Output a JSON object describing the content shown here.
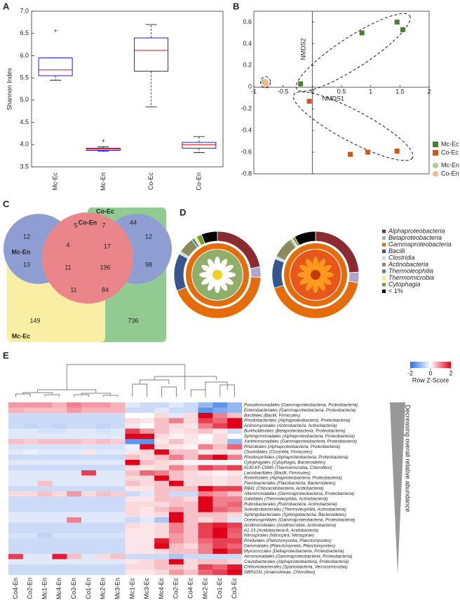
{
  "chart_data": [
    {
      "type": "box",
      "panel": "A",
      "ylabel": "Shannon Index",
      "categories": [
        "Mc-Ec",
        "Mc-En",
        "Co-Ec",
        "Co-En"
      ],
      "min": [
        5.45,
        3.85,
        4.85,
        3.82
      ],
      "q1": [
        5.55,
        3.87,
        5.65,
        3.92
      ],
      "median": [
        5.68,
        3.9,
        6.12,
        4.0
      ],
      "q3": [
        5.95,
        3.92,
        6.4,
        4.05
      ],
      "max": [
        5.95,
        3.95,
        6.7,
        4.18
      ],
      "outliers": [
        [
          6.55
        ],
        [
          4.07
        ],
        [],
        []
      ],
      "color": "#0000ff",
      "median_color": "#ff0000",
      "ylim": [
        3.5,
        7
      ],
      "yticks": [
        3.5,
        {
          "value": 4,
          "label": "4.0"
        },
        4.5,
        {
          "value": 5,
          "label": "5.0"
        },
        5.5,
        {
          "value": 6,
          "label": "6.0"
        },
        6.5,
        {
          "value": 7,
          "label": "7.0"
        }
      ]
    },
    {
      "type": "scatter",
      "panel": "B",
      "xlabel": "NMDS1",
      "ylabel": "NMDS2",
      "xlim": [
        -1,
        2
      ],
      "xticks": [
        -1,
        -0.5,
        0,
        0.5,
        1,
        1.5,
        2
      ],
      "ylim": [
        -0.8,
        0.7
      ],
      "yticks": [
        -0.8,
        -0.6,
        -0.4,
        -0.2,
        0,
        0.2,
        0.4,
        0.6
      ],
      "series": [
        {
          "name": "Mc-Ec",
          "color": "#4a7f32",
          "marker": "square",
          "x": [
            -0.2,
            0.85,
            1.45,
            1.55
          ],
          "values": [
            0.03,
            0.5,
            0.6,
            0.53
          ]
        },
        {
          "name": "Co-Ec",
          "color": "#d4561a",
          "marker": "square",
          "x": [
            -0.05,
            0.65,
            0.95,
            1.45
          ],
          "values": [
            -0.13,
            -0.62,
            -0.6,
            -0.59
          ]
        },
        {
          "name": "Mc-En",
          "color": "#a6d08c",
          "marker": "circle",
          "x": [
            -0.83,
            -0.81
          ],
          "values": [
            0.05,
            0.04
          ]
        },
        {
          "name": "Co-En",
          "color": "#f4b694",
          "marker": "circle",
          "x": [
            -0.8,
            -0.79
          ],
          "values": [
            0.05,
            0.03
          ]
        }
      ]
    },
    {
      "type": "venn",
      "panel": "C",
      "sets": [
        {
          "name": "Co-En",
          "color": "#d9252a"
        },
        {
          "name": "Co-Ec",
          "color": "#3aa13a"
        },
        {
          "name": "Mc-En",
          "color": "#3350b0"
        },
        {
          "name": "Mc-Ec",
          "color": "#e0b000"
        }
      ],
      "counts": [
        44,
        12,
        5,
        7,
        12,
        4,
        17,
        13,
        11,
        196,
        98,
        11,
        84,
        149,
        736
      ]
    },
    {
      "type": "donut",
      "panel": "D",
      "categories": [
        "Alphaproteobacteria",
        "Betaproteobacteria",
        "Gammaproteobacteria",
        "Bacilli",
        "Clostridia",
        "Actinobacteria",
        "Thermoleophilia",
        "Thermomicrobia",
        "Cytophagia",
        "< 1%"
      ],
      "colors": [
        "#8b2a2f",
        "#b3a5c9",
        "#e46c0a",
        "#35568f",
        "#c5d9e9",
        "#8c8a5a",
        "#4a7fa8",
        "#f2f25a",
        "#7a9a3a",
        "#000000"
      ],
      "rings": [
        [
          22,
          4,
          43,
          14,
          1,
          6,
          1,
          1,
          2,
          6
        ],
        [
          24,
          4,
          42,
          11,
          1,
          8,
          0.5,
          0.5,
          1,
          8
        ]
      ]
    },
    {
      "type": "heatmap",
      "panel": "E",
      "colorbar_label": "Row Z-Score",
      "clim": [
        -2,
        2
      ],
      "cticks": [
        -2,
        0,
        2
      ],
      "side_label": "Decreasing overall relative abundance",
      "columns": [
        "Co4-En",
        "Co2-En",
        "Mc1-En",
        "Mc4-En",
        "Co3-En",
        "Co1-En",
        "Mc2-En",
        "Mc3-En",
        "Mc1-Ec",
        "Mc3-Ec",
        "Mc4-Ec",
        "Co2-Ec",
        "Co4-Ec",
        "Mc2-Ec",
        "Co1-Ec",
        "Co3-Ec"
      ],
      "rows": [
        "Pseudomonadales (Gammaproteobacteria, Proteobacteria)",
        "Enterobacteriales (Gammaproteobacteria, Proteobacteria)",
        "Bacillales (Bacilli, Firmicutes)",
        "Rhodobacterales (Alphaproteobacteria, Proteobacteria)",
        "Actinomycetales (Actinobacteria, Actinobacteria)",
        "Burkholderiales (Betaproteobacteria, Proteobacteria)",
        "Sphingomonadales (Alphaproteobacteria, Proteobacteria)",
        "Xanthomonadales (Gammaproteobacteria, Proteobacteria)",
        "Rhizobiales (Alphaproteobacteria, Proteobacteria)",
        "Clostridiales (Clostridia, Firmicutes)",
        "Rhodospirillales (Alphaproteobacteria, Proteobacteria)",
        "Cytophagales (Cytophagia, Bacteroidetes)",
        "IG30-KF-CM45 (Thermomicrobia, Chloroflexi)",
        "Lactobacillales (Bacilli, Firmicutes)",
        "Rickettsiales (Alphaproteobacteria, Proteobacteria)",
        "Flavobacteriales (Flavobacteriia, Bacteroidetes)",
        "RB41 (Chloracidobacteria, Acidobacteria)",
        "Alteromonadales (Gammaproteobacteria, Proteobacteria)",
        "Gaiellales (Thermoleophilia, Actinobacteria)",
        "Rubrobacterales (Rubrobacteria, Actinobacteria)",
        "Solirubrobacterales (Thermoleophilia, Actinobacteria)",
        "Sphingobacteriales (Sphingobacteriia, Bacteroidetes)",
        "Oceanospirillales (Gammaproteobacteria, Proteobacteria)",
        "Acidimicrobiales (Acidimicrobiia, Actinobacteria)",
        "iii1-15 (Acidobacteria-6, Acidobacteria)",
        "Nitrospirales (Nitrospira, Nitrospirae)",
        "Pirellulales (Planctomycetia, Planctomycetes)",
        "Gemmatales (Planctomycetia, Planctomycetes)",
        "Myxococcales (Deltaproteobacteria, Proteobacteria)",
        "Aeromonadales (Gammaproteobacteria, Proteobacteria)",
        "Caulobacterales (Alphaproteobacteria, Proteobacteria)",
        "Chthoniobacterales (Spartobacteria, Verrucomicrobia)",
        "SBR1031 (Anaerolineae, Chloroflexi)"
      ],
      "values": [
        [
          0.8,
          0.8,
          0.8,
          0.6,
          1,
          0.8,
          0.8,
          0.6,
          -0.3,
          -0.5,
          -0.5,
          -0.3,
          -0.5,
          -1,
          -1.5,
          -1
        ],
        [
          0.6,
          0.5,
          0.5,
          0.5,
          0.8,
          0.6,
          0.6,
          0.6,
          -0.5,
          -0.5,
          -0.3,
          -0.5,
          -0.5,
          -1.5,
          -1.2,
          -1
        ],
        [
          -0.5,
          -0.5,
          -0.5,
          -0.5,
          -0.5,
          -0.5,
          -0.5,
          -0.5,
          0,
          0,
          0.3,
          -0.3,
          0.3,
          2.5,
          1,
          0.5
        ],
        [
          -0.5,
          -0.5,
          -0.5,
          -0.5,
          -0.5,
          -0.5,
          -0.5,
          -0.5,
          0.3,
          0.2,
          0.5,
          1,
          0.3,
          1.5,
          1.2,
          2
        ],
        [
          -0.5,
          -0.6,
          -0.5,
          -0.6,
          -0.5,
          -0.5,
          -0.6,
          -0.5,
          0.2,
          0,
          0.5,
          0.3,
          0.2,
          1,
          1.5,
          2.2
        ],
        [
          -0.3,
          -0.3,
          -0.4,
          -0.4,
          -0.3,
          -0.3,
          -0.4,
          -0.3,
          1.5,
          0.8,
          0.5,
          0.2,
          0.3,
          0.5,
          0.2,
          -0.5
        ],
        [
          -0.3,
          -0.3,
          -0.3,
          -0.3,
          -0.3,
          -0.3,
          -0.3,
          -0.3,
          2,
          2.2,
          0.3,
          0.1,
          0.2,
          0,
          0.3,
          0
        ],
        [
          0.5,
          0.4,
          0.5,
          0.5,
          0.5,
          0.4,
          0.5,
          0.4,
          -1.5,
          -1.5,
          0.2,
          0.5,
          0.2,
          0.1,
          0.3,
          -1
        ],
        [
          -0.4,
          -0.4,
          -0.4,
          -0.4,
          -0.4,
          -0.4,
          -0.4,
          -0.4,
          -0.2,
          2.5,
          0.3,
          0.2,
          0.1,
          1,
          0.5,
          1.2
        ],
        [
          -0.3,
          -0.2,
          -0.3,
          -0.3,
          -0.3,
          0.2,
          -0.3,
          -0.3,
          0.2,
          0.3,
          2.5,
          0.5,
          0.5,
          0.2,
          0.3,
          0.2
        ],
        [
          -0.5,
          -0.5,
          -0.5,
          -0.5,
          -0.5,
          -0.5,
          -0.5,
          -0.5,
          0.5,
          0.3,
          0.5,
          1,
          0.5,
          1.5,
          2,
          1
        ],
        [
          -0.3,
          -0.3,
          -0.3,
          -0.3,
          -0.3,
          -0.3,
          -0.3,
          -0.3,
          2.5,
          0.5,
          0.3,
          0.2,
          0.1,
          0.1,
          0.1,
          0
        ],
        [
          -0.5,
          -0.5,
          -0.5,
          -0.5,
          -0.5,
          -0.5,
          -0.5,
          -0.5,
          0.3,
          0.2,
          0.3,
          1,
          0.5,
          1.5,
          1.2,
          1.5
        ],
        [
          -0.3,
          -0.3,
          -0.3,
          -0.3,
          -0.3,
          1.5,
          -0.3,
          -0.3,
          0.5,
          1.2,
          1,
          0.5,
          0.3,
          0.2,
          0.1,
          0.2
        ],
        [
          -0.3,
          -0.3,
          -0.3,
          -0.3,
          -0.3,
          -0.3,
          -0.3,
          -0.3,
          0.3,
          0.3,
          2.5,
          0.5,
          0.3,
          0.3,
          0.2,
          0.3
        ],
        [
          -0.3,
          -0.3,
          0.5,
          -0.3,
          -0.3,
          -0.3,
          -0.3,
          -0.3,
          0.5,
          0.3,
          0.5,
          2.8,
          0.3,
          0.3,
          0.2,
          0.3
        ],
        [
          -0.5,
          -0.5,
          -0.5,
          -0.5,
          -0.5,
          -0.5,
          -0.5,
          -0.5,
          0.2,
          0.2,
          0.5,
          0.5,
          0.5,
          2,
          1.5,
          1.5
        ],
        [
          0.3,
          0.3,
          0.5,
          0.3,
          0.8,
          0.3,
          0.5,
          0.4,
          -0.5,
          -0.3,
          0.5,
          -0.5,
          -0.5,
          1,
          0.8,
          0.5
        ],
        [
          -0.5,
          -0.5,
          -0.5,
          -0.5,
          -0.5,
          -0.5,
          -0.5,
          -0.5,
          0.2,
          0.2,
          0.5,
          0.5,
          0.3,
          2.5,
          1,
          1
        ],
        [
          -0.5,
          -0.5,
          -0.5,
          -0.5,
          -0.5,
          -0.5,
          -0.5,
          -0.5,
          0.3,
          0.3,
          0.3,
          0.5,
          0.5,
          2.5,
          1,
          1.2
        ],
        [
          -0.5,
          -0.5,
          -0.5,
          -0.5,
          -0.5,
          -0.5,
          -0.5,
          -0.5,
          0.3,
          0.2,
          0.5,
          0.8,
          0.5,
          2.2,
          1.2,
          1
        ],
        [
          -0.3,
          -0.3,
          -0.3,
          -0.3,
          -0.3,
          -0.3,
          -0.3,
          -0.3,
          0.3,
          0.2,
          0.3,
          2.5,
          0.5,
          0.5,
          0.5,
          0.3
        ],
        [
          -0.3,
          -0.3,
          -0.3,
          -0.3,
          1,
          -0.3,
          -0.3,
          -0.3,
          -0.5,
          -0.3,
          -0.8,
          2,
          0.5,
          0.3,
          0.5,
          -0.3
        ],
        [
          -0.5,
          -0.5,
          -0.5,
          -0.5,
          -0.5,
          -0.5,
          -0.5,
          -0.5,
          0.3,
          0.2,
          0.3,
          1,
          0.5,
          1.5,
          1.8,
          1.5
        ],
        [
          -0.5,
          -0.5,
          -0.5,
          -0.5,
          -0.5,
          -0.5,
          -0.5,
          -0.5,
          0.2,
          0.2,
          0.3,
          1,
          0.5,
          1.5,
          2,
          1.3
        ],
        [
          -0.4,
          -0.4,
          -0.6,
          -0.4,
          -0.4,
          -0.4,
          -0.4,
          -0.4,
          0.2,
          0.2,
          0.3,
          0.8,
          0.5,
          1.5,
          2,
          1.2
        ],
        [
          -0.5,
          -0.5,
          -0.5,
          -0.5,
          -0.5,
          -0.5,
          -0.5,
          -0.5,
          0.2,
          0.2,
          1.8,
          0.8,
          0.5,
          1.2,
          1.5,
          1.5
        ],
        [
          -0.5,
          -0.5,
          -0.5,
          -0.5,
          -0.5,
          -0.5,
          -0.5,
          -0.5,
          0.2,
          0.2,
          2,
          0.5,
          0.3,
          1,
          1.5,
          1.2
        ],
        [
          -0.5,
          -0.5,
          -0.5,
          -0.5,
          -0.5,
          -0.5,
          -0.5,
          -0.5,
          0.2,
          0.2,
          0.3,
          0.5,
          0.5,
          1,
          2.5,
          1.5
        ],
        [
          1.5,
          -0.3,
          -0.3,
          1.8,
          0.5,
          -0.3,
          0.3,
          0.5,
          -0.5,
          -0.5,
          -0.5,
          -0.8,
          -0.5,
          -0.5,
          -0.5,
          -0.5
        ],
        [
          -0.3,
          -0.3,
          -0.3,
          -0.3,
          -0.3,
          -0.3,
          -0.3,
          -0.3,
          0.2,
          0.3,
          0.5,
          2.8,
          0.3,
          0.5,
          0.5,
          0.3
        ],
        [
          -0.5,
          -0.5,
          -0.5,
          -0.5,
          -0.5,
          -0.5,
          -0.5,
          -0.5,
          0.3,
          0.3,
          0.5,
          0.5,
          0.3,
          1.5,
          1.2,
          1.8
        ],
        [
          -0.5,
          -0.5,
          -0.5,
          -0.5,
          -0.5,
          -0.5,
          -0.5,
          -0.5,
          0.2,
          0.2,
          0.3,
          0.8,
          0.5,
          1.2,
          1.5,
          2.5
        ]
      ]
    }
  ]
}
